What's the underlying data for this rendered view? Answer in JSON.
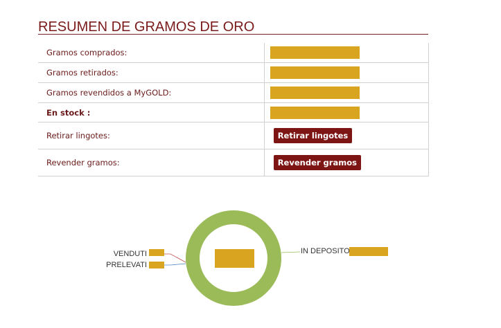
{
  "header": {
    "title": "RESUMEN DE GRAMOS DE ORO"
  },
  "rows": [
    {
      "label": "Gramos comprados:",
      "value": "[redacted]"
    },
    {
      "label": "Gramos retirados:",
      "value": "[redacted]"
    },
    {
      "label": "Gramos revendidos a MyGOLD:",
      "value": "[redacted]"
    },
    {
      "label": "En stock :",
      "value": "[redacted]"
    },
    {
      "label": "Retirar lingotes:",
      "button": "Retirar lingotes"
    },
    {
      "label": "Revender gramos:",
      "button": "Revender gramos"
    }
  ],
  "colors": {
    "brand": "#7e1515",
    "redaction": "#d9a520",
    "donut": "#9bbb59",
    "venduti_line": "#c0504d",
    "prelevati_line": "#4f81bd"
  },
  "chart_data": {
    "type": "pie",
    "style": "donut",
    "categories": [
      "VENDUTI",
      "PRELEVATI",
      "IN DEPOSITO"
    ],
    "values": [
      0,
      0,
      100
    ],
    "values_redacted": true
  }
}
